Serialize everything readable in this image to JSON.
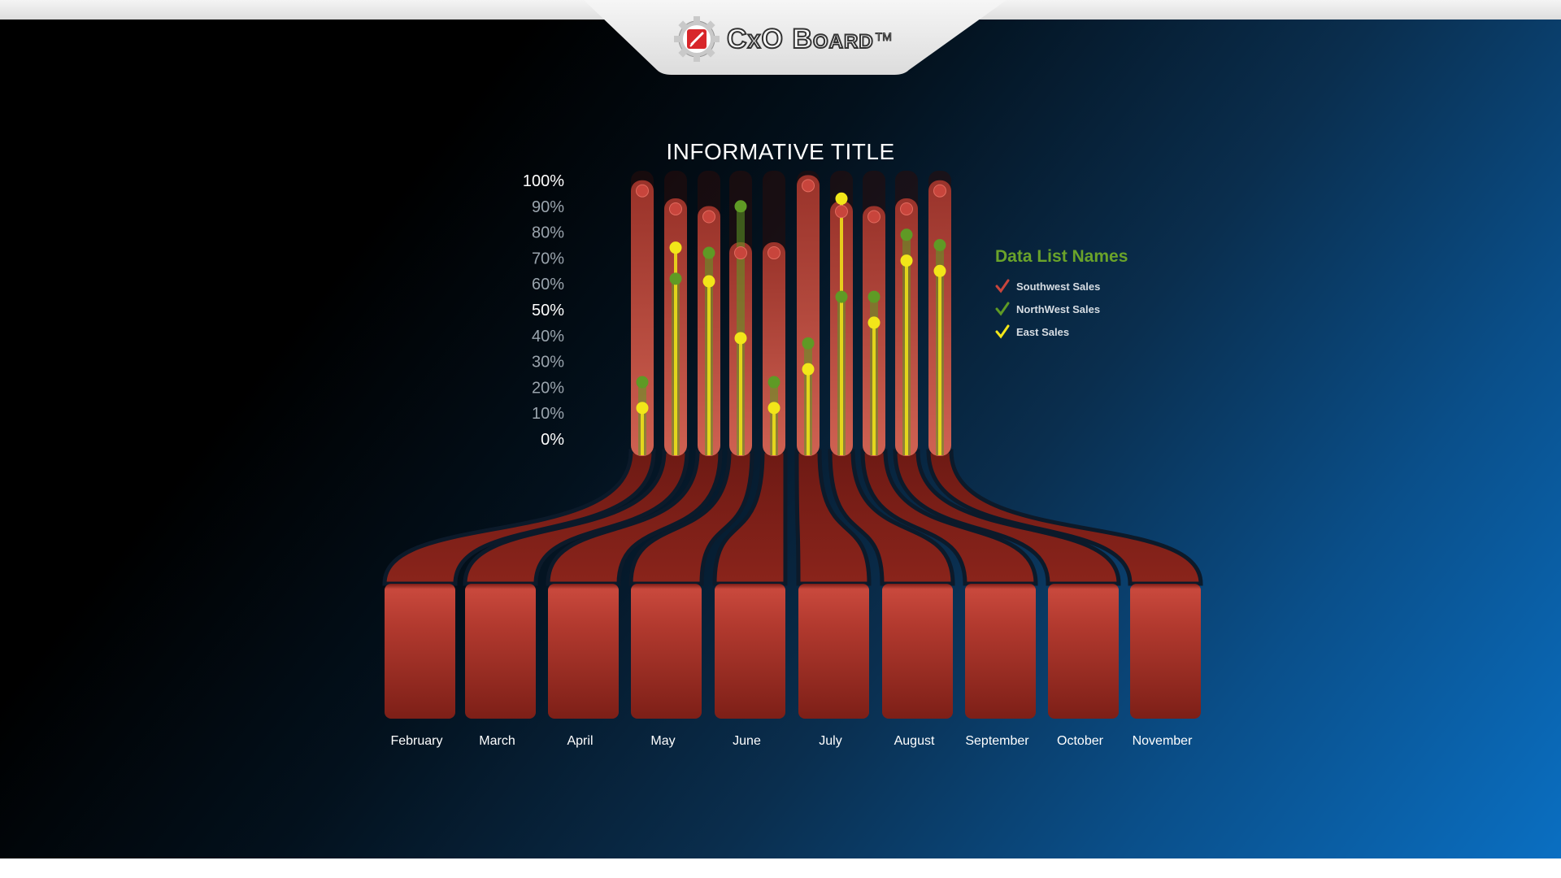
{
  "app": {
    "logo_text": "CxO Board",
    "logo_tm": "TM"
  },
  "colors": {
    "ribbon": "#a02a20",
    "ribbon_light": "#c8463a",
    "southwest": "#c8453c",
    "northwest": "#5f9a25",
    "east": "#f2e619",
    "legend_title": "#6aa32a"
  },
  "chart_data": {
    "type": "dot-lollipop",
    "title": "INFORMATIVE TITLE",
    "ylim": [
      0,
      100
    ],
    "y_ticks": [
      "100%",
      "90%",
      "80%",
      "70%",
      "60%",
      "50%",
      "40%",
      "30%",
      "20%",
      "10%",
      "0%"
    ],
    "categories": [
      "February",
      "March",
      "April",
      "May",
      "June",
      "July",
      "August",
      "September",
      "October",
      "November"
    ],
    "series": [
      {
        "name": "Southwest Sales",
        "values": [
          96,
          89,
          86,
          72,
          72,
          98,
          88,
          86,
          89,
          96
        ]
      },
      {
        "name": "NorthWest Sales",
        "values": [
          22,
          62,
          72,
          90,
          22,
          37,
          55,
          55,
          79,
          75
        ]
      },
      {
        "name": "East Sales",
        "values": [
          12,
          74,
          61,
          39,
          12,
          27,
          93,
          45,
          69,
          65
        ]
      }
    ],
    "legend": {
      "title": "Data List Names",
      "placement": "right",
      "items": [
        "Southwest Sales",
        "NorthWest Sales",
        "East Sales"
      ]
    },
    "grid": false
  }
}
